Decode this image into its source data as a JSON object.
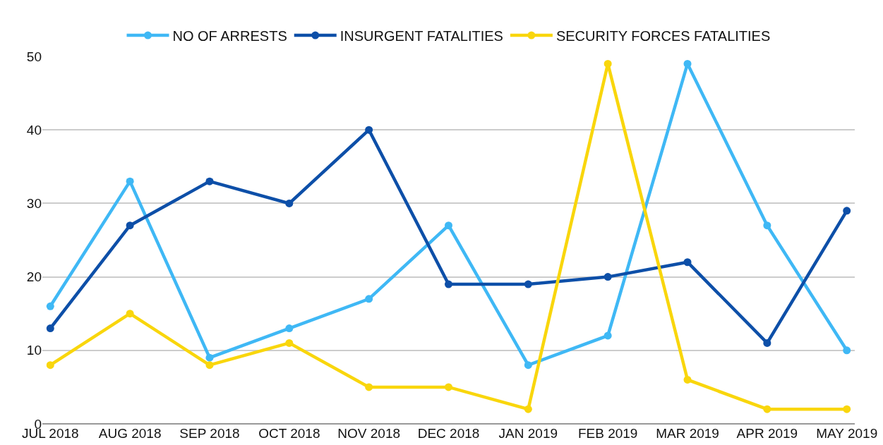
{
  "chart_data": {
    "type": "line",
    "categories": [
      "JUL 2018",
      "AUG 2018",
      "SEP 2018",
      "OCT 2018",
      "NOV 2018",
      "DEC 2018",
      "JAN 2019",
      "FEB 2019",
      "MAR 2019",
      "APR 2019",
      "MAY 2019"
    ],
    "series": [
      {
        "name": "NO OF ARRESTS",
        "color": "#3fb8f5",
        "values": [
          16,
          33,
          9,
          13,
          17,
          27,
          8,
          12,
          49,
          27,
          10
        ]
      },
      {
        "name": "INSURGENT FATALITIES",
        "color": "#0d4fa8",
        "values": [
          13,
          27,
          33,
          30,
          40,
          19,
          19,
          20,
          22,
          11,
          29
        ]
      },
      {
        "name": "SECURITY FORCES FATALITIES",
        "color": "#f9d60c",
        "values": [
          8,
          15,
          8,
          11,
          5,
          5,
          2,
          49,
          6,
          2,
          2
        ]
      }
    ],
    "ylim": [
      0,
      50
    ],
    "yticks": [
      0,
      10,
      20,
      30,
      40,
      50
    ],
    "grid": "y",
    "legend": "top",
    "marker": "circle",
    "line_style": "solid"
  }
}
